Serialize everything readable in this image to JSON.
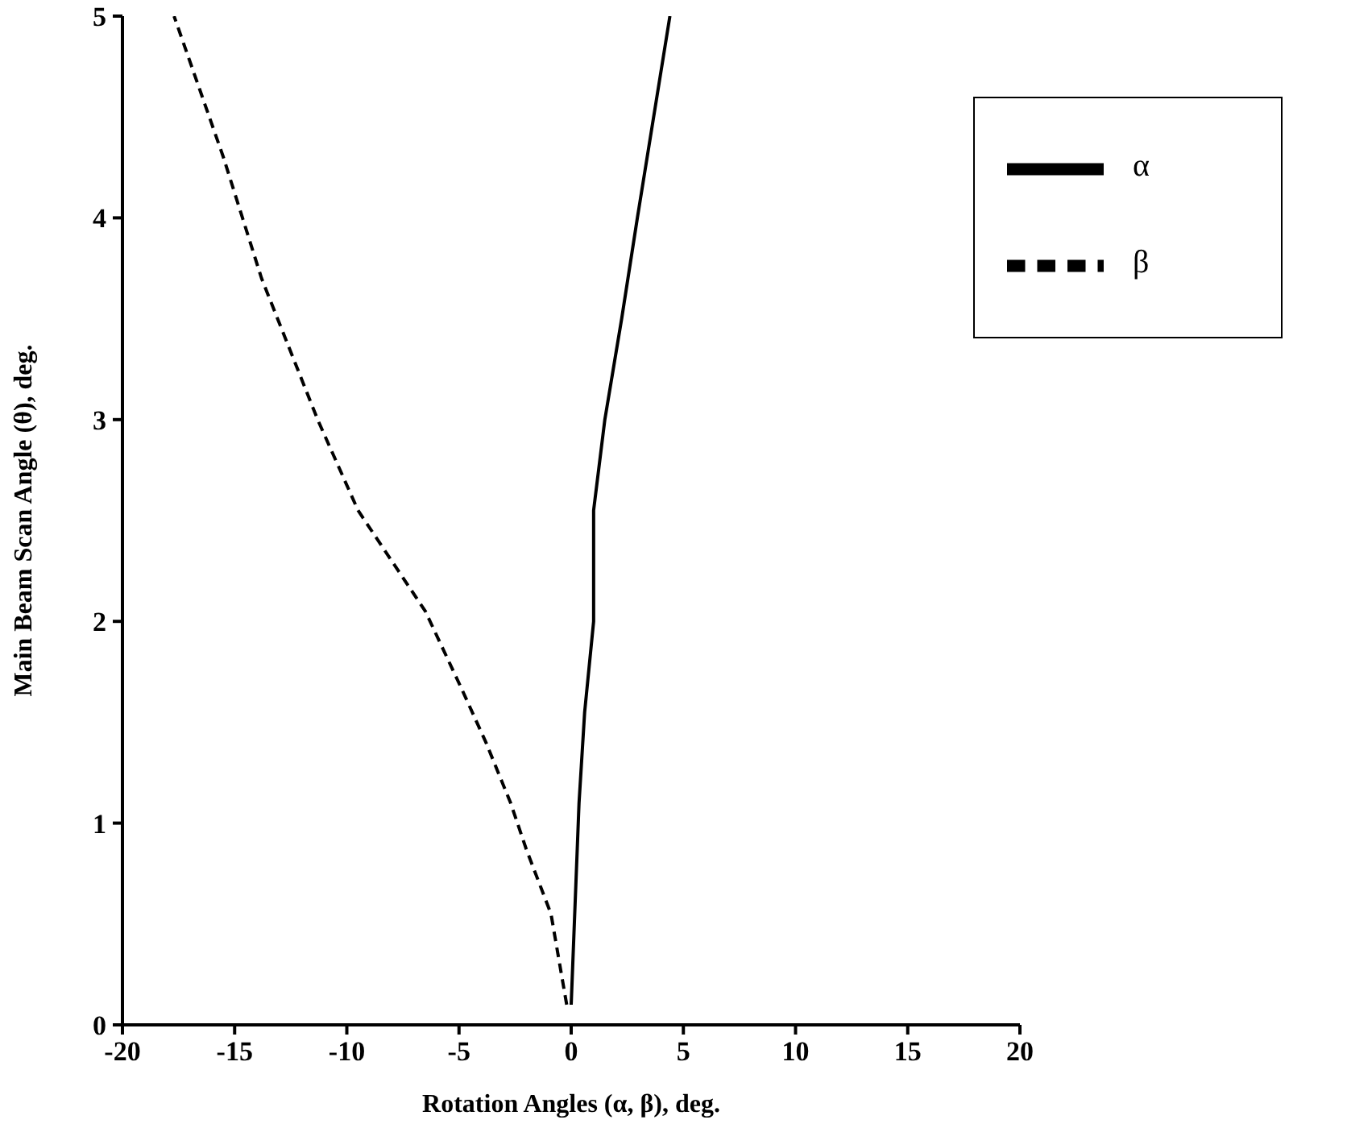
{
  "chart_data": {
    "type": "line",
    "xlabel": "Rotation Angles (α, β), deg.",
    "ylabel": "Main Beam Scan Angle (θ), deg.",
    "xlim": [
      -20,
      20
    ],
    "xticks": [
      -20,
      -15,
      -10,
      -5,
      0,
      5,
      10,
      15,
      20
    ],
    "ylim": [
      0,
      5
    ],
    "yticks": [
      0,
      1,
      2,
      3,
      4,
      5
    ],
    "grid": false,
    "legend": "top right",
    "marker": "none",
    "series": [
      {
        "name": "α",
        "color": "#000000",
        "line_style": "solid",
        "x": [
          0,
          0.35,
          0.6,
          1.0,
          1.0,
          1.5,
          2.25,
          2.95,
          4.4
        ],
        "values": [
          0.1,
          1.1,
          1.55,
          2.0,
          2.55,
          3.0,
          3.5,
          4.0,
          5.0
        ]
      },
      {
        "name": "β",
        "color": "#000000",
        "line_style": "dashed",
        "x": [
          -0.2,
          -0.9,
          -2.0,
          -2.7,
          -3.8,
          -4.9,
          -6.5,
          -8.3,
          -9.5,
          -11.3,
          -13.8,
          -15.5,
          -17.7
        ],
        "values": [
          0.1,
          0.55,
          0.87,
          1.1,
          1.4,
          1.67,
          2.05,
          2.35,
          2.55,
          3.0,
          3.7,
          4.3,
          5.0
        ]
      }
    ]
  }
}
